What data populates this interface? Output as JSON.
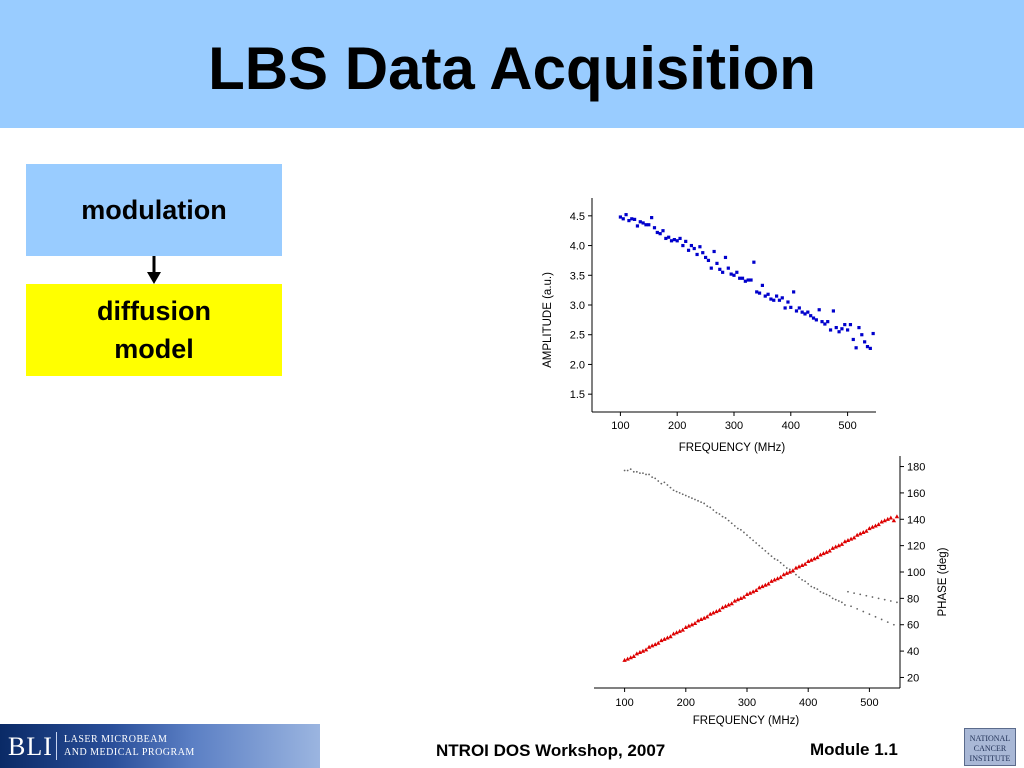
{
  "slide": {
    "title": "LBS Data Acquisition"
  },
  "flow": {
    "box1": "modulation",
    "box2": "diffusion model"
  },
  "footer": {
    "logo_bli": "BLI",
    "logo_line1": "LASER MICROBEAM",
    "logo_line2": "AND MEDICAL PROGRAM",
    "center_text": "NTROI DOS Workshop, 2007",
    "right_text": "Module 1.1",
    "nci_logo_text": "NATIONAL CANCER INSTITUTE"
  },
  "colors": {
    "title_bg": "#99ccff",
    "box1_bg": "#99ccff",
    "box2_bg": "#ffff00",
    "amplitude_points": "#0000cc",
    "phase_points": "#dd0000",
    "gray_points": "#666666"
  },
  "chart_data": [
    {
      "type": "scatter",
      "xlabel": "FREQUENCY (MHz)",
      "ylabel": "AMPLITUDE (a.u.)",
      "xlim": [
        50,
        550
      ],
      "ylim": [
        1.2,
        4.8
      ],
      "x_ticks": [
        100,
        200,
        300,
        400,
        500
      ],
      "y_ticks": [
        1.5,
        2.0,
        2.5,
        3.0,
        3.5,
        4.0,
        4.5
      ],
      "x_tick_labels": [
        "100",
        "200",
        "300",
        "400",
        "500"
      ],
      "y_tick_labels": [
        "1.5",
        "2.0",
        "2.5",
        "3.0",
        "3.5",
        "4.0",
        "4.5"
      ],
      "grid": false,
      "series": [
        {
          "x": [
            100,
            105,
            110,
            115,
            120,
            125,
            130,
            135,
            140,
            145,
            150,
            155,
            160,
            165,
            170,
            175,
            180,
            185,
            190,
            195,
            200,
            205,
            210,
            215,
            220,
            225,
            230,
            235,
            240,
            245,
            250,
            255,
            260,
            265,
            270,
            275,
            280,
            285,
            290,
            295,
            300,
            305,
            310,
            315,
            320,
            325,
            330,
            335,
            340,
            345,
            350,
            355,
            360,
            365,
            370,
            375,
            380,
            385,
            390,
            395,
            400,
            405,
            410,
            415,
            420,
            425,
            430,
            435,
            440,
            445,
            450,
            455,
            460,
            465,
            470,
            475,
            480,
            485,
            490,
            495,
            500,
            505,
            510,
            515,
            520,
            525,
            530,
            535,
            540,
            545
          ],
          "y": [
            4.48,
            4.45,
            4.52,
            4.42,
            4.45,
            4.44,
            4.33,
            4.4,
            4.38,
            4.35,
            4.35,
            4.47,
            4.3,
            4.22,
            4.2,
            4.25,
            4.12,
            4.14,
            4.08,
            4.1,
            4.08,
            4.12,
            4.0,
            4.07,
            3.92,
            4.0,
            3.95,
            3.85,
            3.98,
            3.88,
            3.8,
            3.75,
            3.62,
            3.9,
            3.7,
            3.6,
            3.55,
            3.8,
            3.62,
            3.52,
            3.5,
            3.55,
            3.45,
            3.45,
            3.4,
            3.42,
            3.42,
            3.72,
            3.22,
            3.2,
            3.33,
            3.15,
            3.18,
            3.1,
            3.08,
            3.15,
            3.08,
            3.12,
            2.95,
            3.05,
            2.96,
            3.22,
            2.9,
            2.95,
            2.88,
            2.85,
            2.88,
            2.82,
            2.78,
            2.75,
            2.92,
            2.72,
            2.68,
            2.72,
            2.58,
            2.9,
            2.62,
            2.55,
            2.6,
            2.67,
            2.58,
            2.67,
            2.42,
            2.28,
            2.62,
            2.5,
            2.38,
            2.3,
            2.27,
            2.52
          ]
        }
      ]
    },
    {
      "type": "scatter",
      "xlabel": "FREQUENCY (MHz)",
      "ylabel": "PHASE (deg)",
      "xlim": [
        50,
        550
      ],
      "ylim": [
        12,
        188
      ],
      "x_ticks": [
        100,
        200,
        300,
        400,
        500
      ],
      "y_ticks": [
        20,
        40,
        60,
        80,
        100,
        120,
        140,
        160,
        180
      ],
      "x_tick_labels": [
        "100",
        "200",
        "300",
        "400",
        "500"
      ],
      "y_tick_labels": [
        "20",
        "40",
        "60",
        "80",
        "100",
        "120",
        "140",
        "160",
        "180"
      ],
      "y_axis_position": "right",
      "grid": false,
      "series": [
        {
          "x_start": 100,
          "x_end": 545,
          "x_step": 5,
          "y": [
            33,
            34,
            35,
            36,
            38,
            39,
            40,
            41,
            43,
            44,
            45,
            46,
            48,
            49,
            50,
            51,
            53,
            54,
            55,
            56,
            58,
            59,
            60,
            61,
            63,
            64,
            65,
            66,
            68,
            69,
            70,
            71,
            73,
            74,
            75,
            76,
            78,
            79,
            80,
            81,
            83,
            84,
            85,
            86,
            88,
            89,
            90,
            91,
            93,
            94,
            95,
            96,
            98,
            99,
            100,
            101,
            103,
            104,
            105,
            106,
            108,
            109,
            110,
            111,
            113,
            114,
            115,
            116,
            118,
            119,
            120,
            121,
            123,
            124,
            125,
            126,
            128,
            129,
            130,
            131,
            133,
            134,
            135,
            136,
            138,
            139,
            140,
            141,
            139,
            142
          ]
        },
        {
          "x_start": 100,
          "x_end": 545,
          "x_step": 5,
          "y": [
            177,
            177,
            178,
            176,
            176,
            175,
            175,
            174,
            174,
            172,
            171,
            169,
            167,
            168,
            166,
            164,
            162,
            161,
            160,
            159,
            158,
            157,
            156,
            155,
            154,
            153,
            152,
            150,
            149,
            147,
            145,
            144,
            142,
            141,
            139,
            137,
            135,
            133,
            132,
            130,
            128,
            126,
            124,
            122,
            120,
            118,
            116,
            114,
            112,
            110,
            109,
            107,
            105,
            103,
            102,
            100,
            98,
            96,
            94,
            93,
            91,
            89,
            88,
            87,
            85,
            84,
            83,
            82,
            80,
            79,
            78,
            77,
            75,
            85,
            74,
            84,
            72,
            83,
            70,
            82,
            68,
            81,
            66,
            80,
            64,
            79,
            62,
            78,
            60,
            77
          ]
        }
      ]
    }
  ]
}
